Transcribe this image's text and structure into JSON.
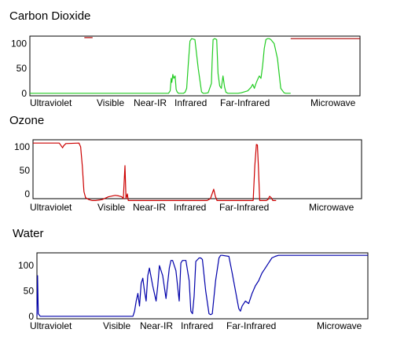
{
  "chart_data": [
    {
      "type": "line",
      "title": "Carbon Dioxide",
      "color": "#22cc22",
      "xlim": [
        0,
        100
      ],
      "ylim": [
        -5,
        115
      ],
      "yticks": [
        0,
        50,
        100
      ],
      "regions": [
        "Ultraviolet",
        "Visible",
        "Near-IR",
        "Infrared",
        "Far-Infrared",
        "Microwave"
      ],
      "series": [
        {
          "color": "#22cc22",
          "x": [
            0,
            42,
            42.5,
            42.8,
            43,
            43.3,
            43.6,
            44,
            44.3,
            44.6,
            45,
            46,
            46.5,
            47,
            47.5,
            48,
            48.5,
            49,
            50,
            51,
            52,
            52.5,
            53,
            54,
            55,
            55.2,
            55.5,
            56,
            56.6,
            57,
            57.5,
            58,
            58.5,
            59,
            59.4,
            60,
            61,
            62,
            63,
            64,
            65,
            66,
            67,
            67.5,
            68,
            68.5,
            69,
            69.5,
            70,
            70.5,
            71,
            71.5,
            72,
            72.5,
            73,
            74,
            75,
            76,
            77,
            77.5,
            78,
            78.5,
            79
          ],
          "y": [
            0,
            0,
            5,
            30,
            22,
            38,
            30,
            35,
            8,
            3,
            0,
            0,
            0,
            2,
            10,
            60,
            105,
            110,
            108,
            50,
            3,
            0,
            0,
            1,
            20,
            60,
            108,
            110,
            108,
            40,
            15,
            10,
            35,
            12,
            2,
            0,
            0,
            0,
            0,
            1,
            3,
            5,
            12,
            18,
            10,
            20,
            28,
            35,
            30,
            55,
            90,
            108,
            110,
            110,
            108,
            100,
            70,
            10,
            1,
            0,
            0,
            0,
            0
          ]
        },
        {
          "color": "#aa0000",
          "x": [
            79,
            100
          ],
          "y": [
            110,
            110
          ]
        },
        {
          "color": "#aa0000",
          "x": [
            16.5,
            19
          ],
          "y": [
            112,
            112
          ]
        }
      ]
    },
    {
      "type": "line",
      "title": "Ozone",
      "color": "#cc0000",
      "xlim": [
        0,
        100
      ],
      "ylim": [
        -10,
        115
      ],
      "yticks": [
        0,
        50,
        100
      ],
      "regions": [
        "Ultraviolet",
        "Visible",
        "Near-IR",
        "Infrared",
        "Far-Infrared",
        "Microwave"
      ],
      "series": [
        {
          "color": "#cc0000",
          "x": [
            0,
            8,
            8.5,
            9,
            9.3,
            10,
            14,
            14.5,
            15,
            15.5,
            16,
            17,
            18,
            19,
            21,
            23,
            25,
            26,
            27,
            27.5,
            28,
            28.3,
            28.7,
            29,
            29.3,
            30,
            40,
            50,
            53,
            54,
            55,
            55.5,
            56,
            65,
            67,
            67.5,
            68,
            68.3,
            68.6,
            69,
            70,
            71,
            71.5,
            72,
            72.5,
            73,
            73.5,
            74
          ],
          "y": [
            108,
            108,
            103,
            98,
            102,
            107,
            108,
            100,
            60,
            5,
            -8,
            -12,
            -14,
            -14,
            -12,
            -6,
            -3,
            -4,
            -6,
            -10,
            60,
            -10,
            0,
            -14,
            -14,
            -14,
            -14,
            -14,
            -14,
            -10,
            10,
            -5,
            -14,
            -14,
            -14,
            60,
            105,
            104,
            60,
            -14,
            -14,
            -14,
            -12,
            -5,
            -8,
            -14,
            -14,
            -14
          ]
        }
      ]
    },
    {
      "type": "line",
      "title": "Water",
      "color": "#0000aa",
      "xlim": [
        0,
        100
      ],
      "ylim": [
        -5,
        125
      ],
      "yticks": [
        0,
        50,
        100
      ],
      "regions": [
        "Ultraviolet",
        "Visible",
        "Near-IR",
        "Infrared",
        "Far-Infrared",
        "Microwave"
      ],
      "series": [
        {
          "color": "#0000aa",
          "x": [
            0,
            0.2,
            0.4,
            1,
            10,
            20,
            29,
            29.5,
            30,
            30.5,
            31,
            31.5,
            32,
            32.5,
            33,
            33.5,
            34,
            35,
            36,
            36.5,
            37,
            38,
            39,
            40,
            40.5,
            41,
            42,
            43,
            43.5,
            44,
            45,
            46,
            46.5,
            47,
            47.5,
            48,
            49,
            49.5,
            50,
            51,
            52,
            52.5,
            53,
            54,
            55,
            55.5,
            56,
            58,
            59,
            60,
            61,
            61.5,
            62,
            63,
            64,
            65,
            66,
            67,
            68,
            69,
            70,
            71,
            72,
            73,
            74,
            75,
            76,
            100
          ],
          "y": [
            0,
            80,
            5,
            0,
            0,
            0,
            0,
            10,
            30,
            45,
            20,
            65,
            75,
            50,
            30,
            80,
            95,
            60,
            30,
            60,
            100,
            80,
            35,
            95,
            110,
            110,
            90,
            30,
            105,
            110,
            110,
            70,
            10,
            5,
            40,
            108,
            115,
            115,
            112,
            50,
            5,
            3,
            5,
            70,
            115,
            120,
            120,
            118,
            85,
            50,
            15,
            10,
            20,
            30,
            25,
            45,
            60,
            70,
            85,
            95,
            105,
            115,
            118,
            120,
            120,
            120,
            120,
            120
          ]
        }
      ]
    }
  ]
}
